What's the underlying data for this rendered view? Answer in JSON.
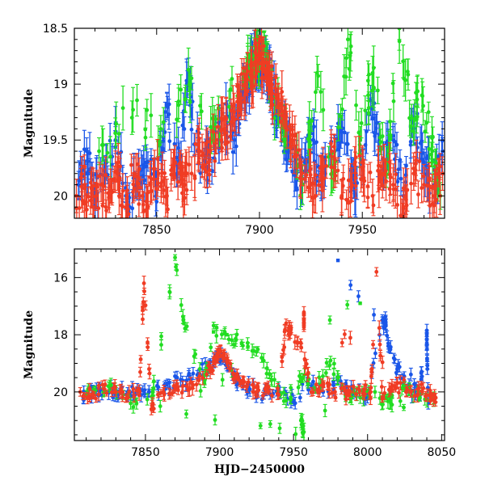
{
  "chart_data": [
    {
      "id": "top",
      "type": "scatter",
      "title": "",
      "xlabel": "",
      "ylabel": "Magnitude",
      "xlim": [
        7810,
        7990
      ],
      "ylim": [
        18.5,
        20.2
      ],
      "y_inverted": true,
      "x_ticks": [
        7850,
        7900,
        7950
      ],
      "y_ticks": [
        18.5,
        19,
        19.5,
        20
      ],
      "y_tick_labels": [
        "18.5",
        "19",
        "19.5",
        "20"
      ],
      "grid": false,
      "series": [
        {
          "color": "#1a56e8",
          "x": [
            7812,
            7816,
            7820,
            7825,
            7830,
            7835,
            7840,
            7845,
            7850,
            7855,
            7860,
            7865,
            7870,
            7875,
            7880,
            7884,
            7888,
            7891,
            7894,
            7896,
            7898,
            7900,
            7902,
            7904,
            7906,
            7908,
            7911,
            7914,
            7918,
            7922,
            7926,
            7930,
            7935,
            7940,
            7945,
            7950,
            7955,
            7960,
            7965,
            7970,
            7975,
            7980,
            7985,
            7989
          ],
          "y": [
            19.9,
            19.6,
            20.0,
            19.8,
            19.5,
            20.0,
            19.9,
            19.7,
            19.9,
            19.2,
            19.8,
            19.0,
            19.6,
            19.7,
            19.5,
            19.3,
            19.5,
            19.2,
            19.0,
            18.9,
            18.8,
            18.75,
            18.8,
            18.9,
            19.0,
            19.2,
            19.4,
            19.6,
            19.8,
            19.7,
            19.5,
            19.9,
            19.6,
            19.4,
            19.9,
            19.7,
            19.2,
            19.8,
            19.5,
            20.0,
            19.3,
            19.7,
            19.9,
            19.6
          ]
        },
        {
          "color": "#22dd22",
          "x": [
            7822,
            7838,
            7852,
            7866,
            7878,
            7892,
            7897,
            7899,
            7902,
            7905,
            7912,
            7921,
            7928,
            7936,
            7943,
            7949,
            7955,
            7962,
            7968,
            7974,
            7979,
            7984,
            7988
          ],
          "y": [
            19.6,
            19.3,
            19.4,
            19.0,
            19.4,
            18.95,
            18.8,
            18.7,
            18.7,
            18.95,
            19.5,
            19.9,
            18.9,
            19.8,
            18.6,
            19.5,
            18.9,
            19.7,
            18.5,
            19.3,
            19.1,
            19.6,
            20.0
          ],
          "errors": [
            0.12,
            0.15,
            0.12,
            0.14,
            0.12,
            0.1,
            0.08,
            0.08,
            0.08,
            0.1,
            0.12,
            0.18,
            0.15,
            0.15,
            0.14,
            0.12,
            0.15,
            0.14,
            0.1,
            0.12,
            0.15,
            0.14,
            0.12
          ]
        },
        {
          "color": "#f03c24",
          "x": [
            7811,
            7815,
            7819,
            7823,
            7827,
            7831,
            7835,
            7839,
            7843,
            7847,
            7851,
            7855,
            7859,
            7863,
            7867,
            7871,
            7875,
            7879,
            7883,
            7887,
            7890,
            7893,
            7896,
            7898,
            7900,
            7902,
            7904,
            7906,
            7909,
            7912,
            7916,
            7920,
            7925,
            7930,
            7935,
            7940,
            7945,
            7950,
            7955,
            7960,
            7965,
            7970,
            7975,
            7980,
            7985,
            7989
          ],
          "y": [
            20.0,
            19.9,
            20.1,
            19.9,
            20.0,
            19.8,
            20.1,
            19.8,
            20.0,
            19.9,
            19.8,
            20.0,
            19.7,
            19.9,
            19.8,
            19.6,
            19.7,
            19.5,
            19.4,
            19.3,
            19.1,
            19.0,
            18.9,
            18.8,
            18.75,
            18.8,
            18.9,
            19.0,
            19.1,
            19.3,
            19.5,
            19.7,
            19.9,
            19.8,
            19.6,
            20.0,
            19.9,
            19.7,
            20.0,
            19.8,
            19.9,
            20.1,
            19.8,
            19.9,
            20.0,
            19.8
          ],
          "errors": [
            0.15,
            0.15,
            0.15,
            0.15,
            0.15,
            0.15,
            0.15,
            0.15,
            0.15,
            0.15,
            0.15,
            0.15,
            0.15,
            0.15,
            0.15,
            0.12,
            0.12,
            0.12,
            0.12,
            0.12,
            0.1,
            0.1,
            0.08,
            0.08,
            0.08,
            0.08,
            0.08,
            0.08,
            0.1,
            0.1,
            0.12,
            0.12,
            0.15,
            0.15,
            0.15,
            0.15,
            0.15,
            0.15,
            0.15,
            0.15,
            0.15,
            0.15,
            0.15,
            0.15,
            0.15,
            0.15
          ]
        }
      ]
    },
    {
      "id": "bottom",
      "type": "scatter",
      "title": "",
      "xlabel": "HJD−2450000",
      "ylabel": "Magnitude",
      "xlim": [
        7802,
        8052
      ],
      "ylim": [
        15.0,
        21.7
      ],
      "y_inverted": true,
      "x_ticks": [
        7850,
        7900,
        7950,
        8000,
        8050
      ],
      "y_ticks": [
        16,
        18,
        20
      ],
      "y_tick_labels": [
        "16",
        "18",
        "20"
      ],
      "grid": false,
      "series": [
        {
          "color": "#1a56e8",
          "x": [
            7808,
            7815,
            7822,
            7830,
            7838,
            7846,
            7855,
            7865,
            7875,
            7885,
            7893,
            7898,
            7902,
            7906,
            7912,
            7920,
            7930,
            7940,
            7950,
            7960,
            7970,
            7980,
            7990,
            8000,
            8010,
            8012,
            8014,
            8020,
            8028,
            8035,
            8040,
            8040,
            8041,
            7980
          ],
          "y": [
            20.2,
            20.0,
            19.9,
            20.1,
            20.0,
            19.9,
            20.0,
            19.7,
            19.6,
            19.4,
            19.0,
            18.7,
            18.8,
            19.2,
            19.6,
            19.9,
            20.1,
            19.8,
            20.3,
            19.7,
            20.0,
            19.6,
            19.9,
            20.1,
            17.5,
            17.6,
            18.3,
            19.2,
            19.9,
            20.0,
            18.0,
            18.3,
            20.4,
            15.4
          ],
          "errors": [
            0.2,
            0.18,
            0.15,
            0.15,
            0.15,
            0.15,
            0.15,
            0.15,
            0.15,
            0.15,
            0.12,
            0.1,
            0.1,
            0.1,
            0.12,
            0.15,
            0.15,
            0.15,
            0.18,
            0.15,
            0.15,
            0.15,
            0.15,
            0.18,
            0.2,
            0.2,
            0.2,
            0.2,
            0.15,
            0.15,
            0.0,
            0.0,
            0.2,
            0.0
          ]
        },
        {
          "color": "#22dd22",
          "x": [
            7810,
            7825,
            7840,
            7855,
            7870,
            7876,
            7890,
            7896,
            7905,
            7915,
            7925,
            7935,
            7945,
            7955,
            7965,
            7975,
            7985,
            7995,
            8005,
            8015,
            8025,
            8035,
            8045,
            7955,
            7957,
            7860,
            7995
          ],
          "y": [
            20.1,
            19.8,
            20.4,
            20.0,
            15.3,
            17.6,
            19.6,
            17.9,
            18.0,
            18.3,
            18.6,
            19.6,
            20.3,
            19.5,
            19.9,
            18.9,
            20.1,
            20.2,
            20.0,
            20.3,
            19.8,
            20.1,
            20.2,
            21.0,
            21.4,
            20.5,
            16.9
          ],
          "errors": [
            0.15,
            0.15,
            0.2,
            0.15,
            0.1,
            0.0,
            0.15,
            0.0,
            0.0,
            0.0,
            0.15,
            0.15,
            0.25,
            0.15,
            0.15,
            0.15,
            0.15,
            0.2,
            0.2,
            0.3,
            0.15,
            0.15,
            0.2,
            0.25,
            0.3,
            0.2,
            0.0
          ]
        },
        {
          "color": "#f03c24",
          "x": [
            7806,
            7814,
            7822,
            7830,
            7838,
            7846,
            7849,
            7854,
            7862,
            7870,
            7878,
            7886,
            7894,
            7898,
            7900,
            7903,
            7907,
            7912,
            7918,
            7925,
            7932,
            7940,
            7945,
            7948,
            7955,
            7962,
            7970,
            7978,
            7986,
            7994,
            8002,
            8006,
            8010,
            8018,
            8026,
            8034,
            8042,
            8046,
            7957,
            7957
          ],
          "y": [
            20.0,
            20.1,
            19.9,
            20.0,
            20.2,
            20.0,
            16.2,
            20.6,
            20.0,
            19.9,
            19.8,
            19.6,
            19.2,
            18.8,
            18.6,
            18.8,
            19.2,
            19.5,
            19.8,
            20.0,
            19.9,
            20.1,
            17.6,
            17.9,
            18.3,
            20.0,
            19.8,
            20.0,
            20.1,
            19.9,
            20.0,
            15.8,
            20.2,
            19.8,
            20.0,
            19.9,
            20.1,
            20.2,
            17.3,
            17.6
          ],
          "errors": [
            0.15,
            0.15,
            0.15,
            0.15,
            0.15,
            0.15,
            0.25,
            0.2,
            0.15,
            0.15,
            0.15,
            0.12,
            0.1,
            0.08,
            0.08,
            0.08,
            0.1,
            0.12,
            0.12,
            0.15,
            0.15,
            0.15,
            0.15,
            0.0,
            0.15,
            0.15,
            0.15,
            0.15,
            0.15,
            0.15,
            0.15,
            0.15,
            0.15,
            0.15,
            0.15,
            0.15,
            0.15,
            0.15,
            0.0,
            0.0
          ]
        }
      ]
    }
  ]
}
